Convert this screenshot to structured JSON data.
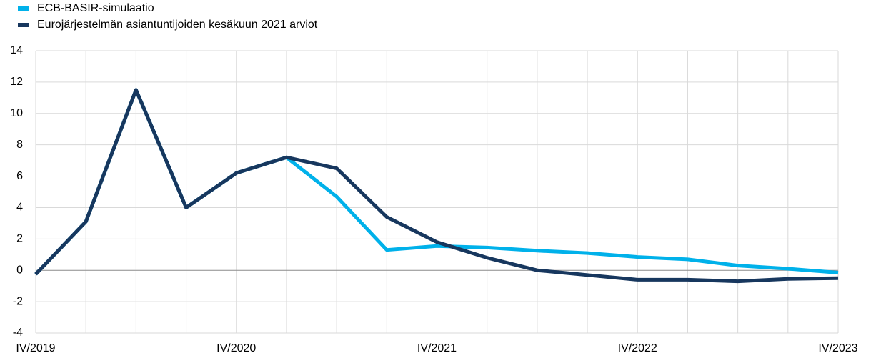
{
  "chart_data": {
    "type": "line",
    "categories": [
      "IV/2019",
      null,
      null,
      null,
      "IV/2020",
      null,
      null,
      null,
      "IV/2021",
      null,
      null,
      null,
      "IV/2022",
      null,
      null,
      null,
      "IV/2023"
    ],
    "series": [
      {
        "name": "ECB-BASIR-simulaatio",
        "color": "#00b1ea",
        "values": [
          -0.25,
          3.1,
          11.5,
          4.0,
          6.2,
          7.2,
          4.7,
          1.3,
          1.55,
          1.45,
          1.25,
          1.1,
          0.85,
          0.7,
          0.3,
          0.1,
          -0.15
        ]
      },
      {
        "name": "Eurojärjestelmän asiantuntijoiden kesäkuun 2021 arviot",
        "color": "#17375e",
        "values": [
          -0.25,
          3.1,
          11.5,
          4.0,
          6.2,
          7.2,
          6.5,
          3.4,
          1.8,
          0.8,
          0.0,
          -0.3,
          -0.6,
          -0.6,
          -0.7,
          -0.55,
          -0.5
        ]
      }
    ],
    "ylim": [
      -4,
      14
    ],
    "yticks": [
      -4,
      -2,
      0,
      2,
      4,
      6,
      8,
      10,
      12,
      14
    ],
    "grid": true
  }
}
